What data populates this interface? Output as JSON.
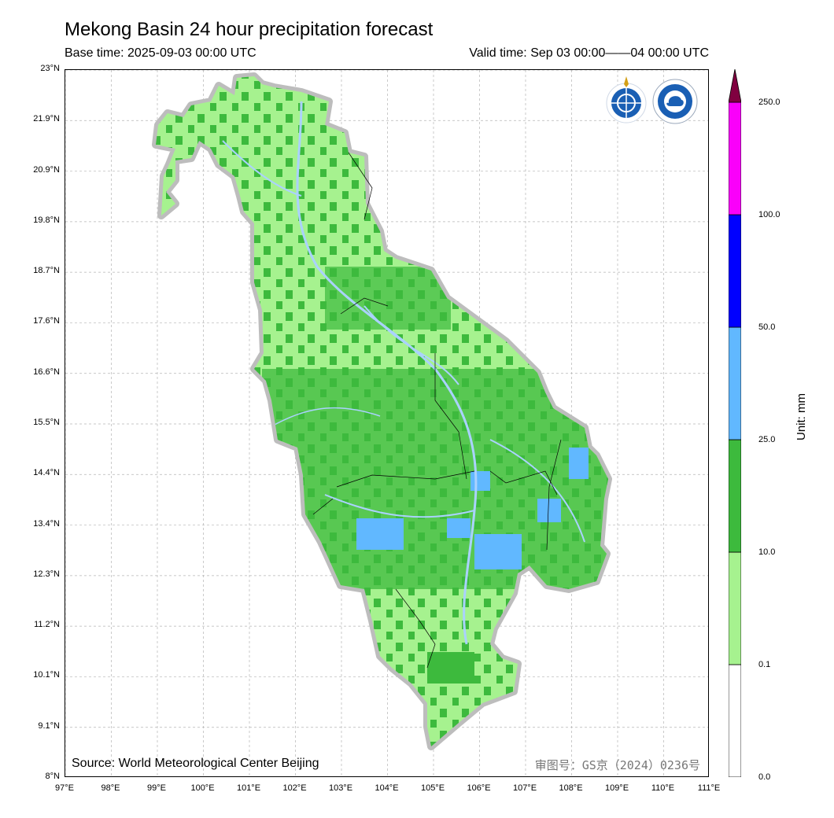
{
  "header": {
    "title": "Mekong Basin 24 hour precipitation forecast",
    "base_time": "Base time: 2025-09-03 00:00 UTC",
    "valid_time": "Valid time: Sep 03 00:00——04 00:00 UTC"
  },
  "axes": {
    "lon_labels": [
      "97°E",
      "98°E",
      "99°E",
      "100°E",
      "101°E",
      "102°E",
      "103°E",
      "104°E",
      "105°E",
      "106°E",
      "107°E",
      "108°E",
      "109°E",
      "110°E",
      "111°E"
    ],
    "lat_labels": [
      "23°N",
      "21.9°N",
      "20.9°N",
      "19.8°N",
      "18.7°N",
      "17.6°N",
      "16.6°N",
      "15.5°N",
      "14.4°N",
      "13.4°N",
      "12.3°N",
      "11.2°N",
      "10.1°N",
      "9.1°N",
      "8°N"
    ],
    "lon_range": [
      97,
      111
    ],
    "lat_range": [
      8,
      23
    ]
  },
  "footer": {
    "source": "Source: World Meteorological Center Beijing",
    "approval": "审图号：GS京（2024）0236号"
  },
  "colorbar": {
    "levels": [
      "0.0",
      "0.1",
      "10.0",
      "25.0",
      "50.0",
      "100.0",
      "250.0"
    ],
    "colors": [
      "#ffffff",
      "#a6f28f",
      "#3dba3d",
      "#61b8ff",
      "#0000ff",
      "#fa00fa",
      "#800040"
    ],
    "unit": "Unit: mm"
  },
  "logos": [
    "wmo-logo",
    "cma-logo"
  ]
}
